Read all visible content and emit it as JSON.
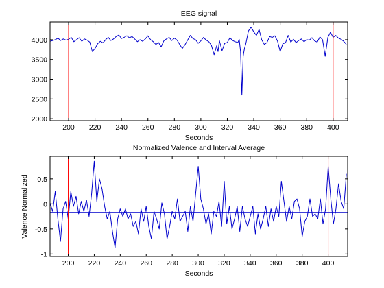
{
  "chart_data": [
    {
      "type": "line",
      "title": "EEG signal",
      "xlabel": "Seconds",
      "ylabel": "",
      "xlim": [
        186,
        411
      ],
      "ylim": [
        1950,
        4450
      ],
      "xticks": [
        200,
        220,
        240,
        260,
        280,
        300,
        320,
        340,
        360,
        380,
        400
      ],
      "yticks": [
        2000,
        2500,
        3000,
        3500,
        4000
      ],
      "grid": false,
      "line_color": "#0000cc",
      "marker_color": "#ff0000",
      "markers_x": [
        200,
        400
      ],
      "series": [
        {
          "x": [
            186,
            188,
            190,
            192,
            194,
            196,
            198,
            200,
            202,
            204,
            206,
            208,
            210,
            212,
            214,
            216,
            218,
            220,
            222,
            224,
            226,
            228,
            230,
            232,
            234,
            236,
            238,
            240,
            242,
            244,
            246,
            248,
            250,
            252,
            254,
            256,
            258,
            260,
            262,
            264,
            266,
            268,
            270,
            272,
            274,
            276,
            278,
            280,
            282,
            284,
            286,
            288,
            290,
            292,
            294,
            296,
            298,
            300,
            302,
            304,
            306,
            308,
            310,
            312,
            313,
            314,
            316,
            318,
            320,
            322,
            324,
            326,
            328,
            329,
            330,
            331,
            332,
            333,
            334,
            336,
            338,
            340,
            342,
            344,
            346,
            348,
            350,
            352,
            354,
            356,
            358,
            360,
            362,
            364,
            366,
            368,
            370,
            372,
            374,
            376,
            378,
            380,
            382,
            384,
            386,
            388,
            390,
            392,
            394,
            396,
            398,
            400,
            402,
            404,
            406,
            408,
            410
          ],
          "values": [
            3960,
            3980,
            4000,
            4040,
            3980,
            4020,
            3990,
            4010,
            4060,
            3950,
            4000,
            4050,
            3960,
            4020,
            3990,
            3940,
            3700,
            3780,
            3900,
            3960,
            3920,
            4000,
            4060,
            3980,
            4020,
            4080,
            4120,
            4030,
            4060,
            4100,
            4050,
            4080,
            4020,
            3950,
            4000,
            3960,
            4020,
            4100,
            4000,
            3950,
            3880,
            3930,
            3820,
            3970,
            4020,
            4060,
            3980,
            4040,
            3990,
            3880,
            3780,
            3870,
            3990,
            4110,
            4030,
            4000,
            3910,
            3970,
            4060,
            3990,
            3950,
            3860,
            3620,
            3850,
            3700,
            3980,
            3720,
            3910,
            3930,
            4050,
            3980,
            3950,
            3930,
            4010,
            3700,
            2600,
            3580,
            3780,
            3900,
            4220,
            4320,
            4200,
            4110,
            4260,
            4000,
            3880,
            3930,
            4080,
            4060,
            4100,
            3960,
            3700,
            3900,
            3920,
            4110,
            3940,
            4010,
            3930,
            3980,
            4020,
            3950,
            4000,
            3990,
            4050,
            3970,
            3940,
            4070,
            4000,
            3580,
            4060,
            4190,
            4060,
            4110,
            4040,
            4010,
            3960,
            3880
          ]
        }
      ]
    },
    {
      "type": "line",
      "title": "Normalized Valence and Interval Average",
      "xlabel": "Seconds",
      "ylabel": "Valence Normalized",
      "xlim": [
        186,
        415
      ],
      "ylim": [
        -1.05,
        0.95
      ],
      "xticks": [
        200,
        220,
        240,
        260,
        280,
        300,
        320,
        340,
        360,
        380,
        400
      ],
      "yticks": [
        -1,
        -0.5,
        0,
        0.5
      ],
      "ytick_labels": [
        "-1",
        "-0.5",
        "0",
        "0.5"
      ],
      "grid": false,
      "line_color": "#0000cc",
      "marker_color": "#ff0000",
      "markers_x": [
        200,
        400
      ],
      "series": [
        {
          "x": [
            186,
            188,
            190,
            192,
            194,
            196,
            198,
            200,
            202,
            204,
            206,
            208,
            210,
            212,
            214,
            216,
            218,
            220,
            222,
            224,
            226,
            228,
            230,
            232,
            234,
            236,
            238,
            240,
            242,
            244,
            246,
            248,
            250,
            252,
            254,
            256,
            258,
            260,
            262,
            264,
            266,
            268,
            270,
            272,
            274,
            276,
            278,
            280,
            282,
            284,
            286,
            288,
            290,
            292,
            294,
            296,
            298,
            300,
            302,
            304,
            306,
            308,
            310,
            312,
            314,
            316,
            318,
            320,
            322,
            324,
            326,
            328,
            330,
            332,
            334,
            336,
            338,
            340,
            342,
            344,
            346,
            348,
            350,
            352,
            354,
            356,
            358,
            360,
            362,
            364,
            366,
            368,
            370,
            372,
            374,
            376,
            378,
            380,
            382,
            384,
            386,
            388,
            390,
            392,
            394,
            396,
            398,
            400,
            402,
            404,
            406,
            408,
            410,
            412,
            414
          ],
          "values": [
            0.02,
            -0.15,
            0.25,
            -0.3,
            -0.75,
            -0.1,
            0.05,
            -0.3,
            0.25,
            -0.05,
            0.15,
            -0.2,
            0.05,
            -0.15,
            0.08,
            -0.25,
            0.2,
            0.85,
            0.05,
            0.5,
            0.3,
            -0.05,
            -0.3,
            -0.15,
            -0.55,
            -0.88,
            -0.3,
            -0.1,
            -0.25,
            -0.1,
            -0.3,
            -0.2,
            -0.45,
            -0.35,
            -0.6,
            -0.1,
            -0.35,
            -0.05,
            -0.45,
            -0.7,
            -0.15,
            -0.3,
            -0.5,
            0.02,
            -0.2,
            -0.7,
            -0.45,
            -0.15,
            -0.3,
            0.1,
            -0.35,
            -0.25,
            -0.15,
            -0.55,
            -0.05,
            -0.35,
            0.2,
            0.75,
            0.1,
            -0.1,
            -0.4,
            -0.2,
            -0.6,
            -0.15,
            -0.25,
            0.05,
            -0.45,
            0.45,
            -0.4,
            -0.05,
            -0.5,
            -0.3,
            -0.05,
            -0.55,
            -0.05,
            -0.3,
            -0.45,
            -0.25,
            -0.05,
            -0.6,
            -0.2,
            -0.5,
            -0.3,
            -0.05,
            -0.45,
            -0.1,
            -0.35,
            -0.05,
            -0.25,
            0.45,
            0.05,
            -0.35,
            -0.05,
            -0.3,
            0.05,
            0.1,
            -0.1,
            -0.65,
            -0.35,
            -0.25,
            0.1,
            -0.25,
            -0.2,
            -0.3,
            0.1,
            -0.4,
            -0.1,
            0.75,
            0.1,
            -0.4,
            -0.1,
            0.4,
            0.05,
            -0.1,
            0.6
          ]
        },
        {
          "x": [
            186,
            415
          ],
          "values": [
            -0.17,
            -0.17
          ]
        }
      ]
    }
  ]
}
